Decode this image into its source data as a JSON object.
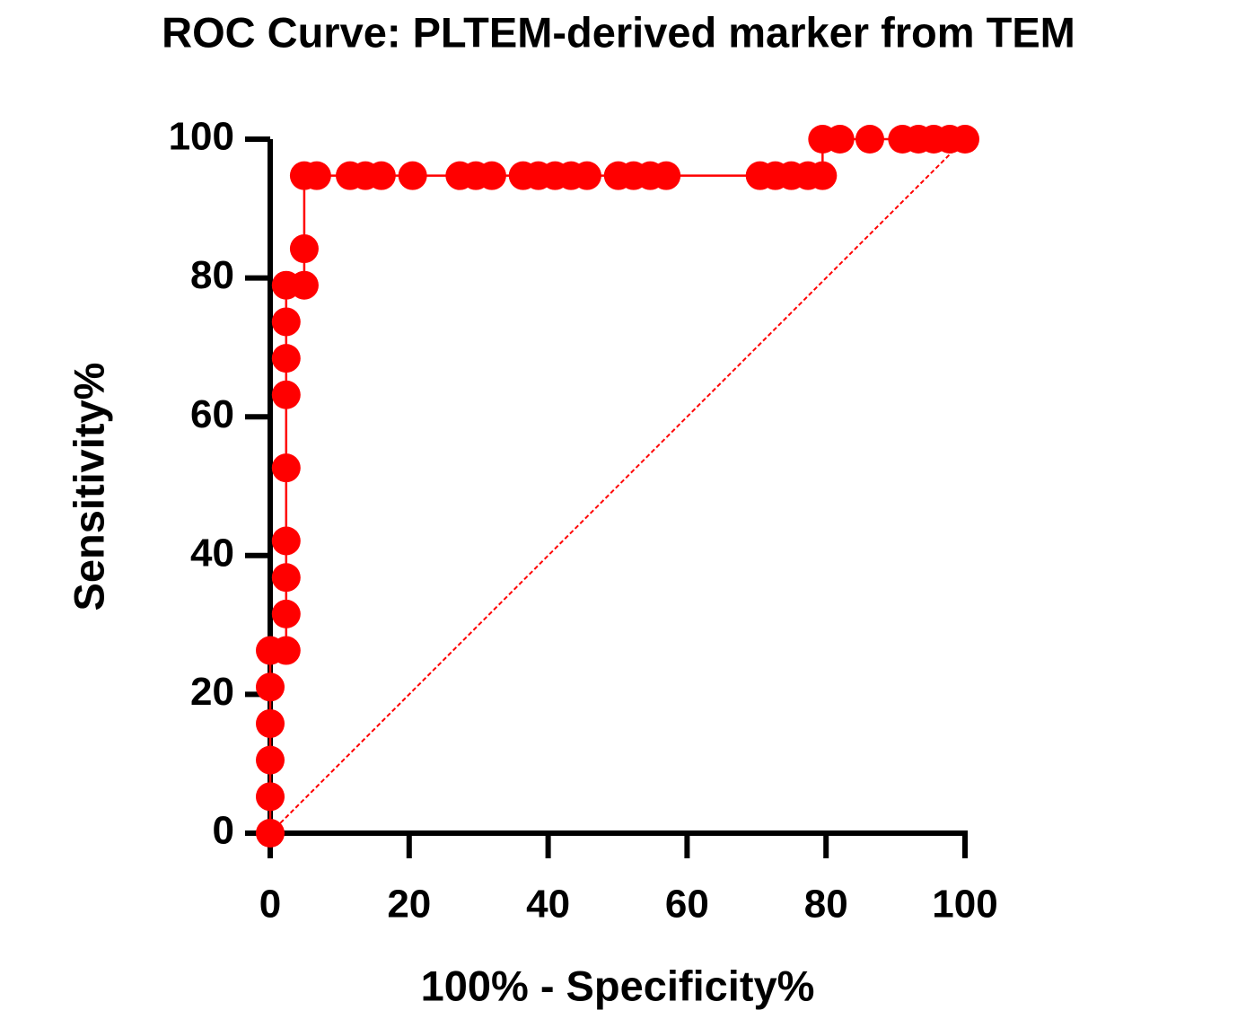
{
  "chart_data": {
    "type": "line",
    "title": "ROC Curve: PLTEM-derived marker  from TEM",
    "x_label": "100% - Specificity%",
    "y_label": "Sensitivity%",
    "x": [
      0,
      0,
      0,
      0,
      0,
      0,
      2.3,
      2.3,
      2.3,
      2.3,
      2.3,
      2.3,
      2.3,
      2.3,
      2.3,
      4.9,
      4.9,
      4.9,
      6.7,
      11.5,
      13.7,
      16,
      20.5,
      27.3,
      29.6,
      31.9,
      36.4,
      38.6,
      41,
      43.3,
      45.6,
      50.1,
      52.3,
      54.7,
      57,
      70.5,
      72.7,
      75,
      77.4,
      79.5,
      79.5,
      82,
      86.3,
      91,
      93.3,
      95.5,
      97.8,
      100
    ],
    "values": [
      0,
      5.26,
      10.53,
      15.79,
      21.05,
      26.32,
      26.32,
      31.58,
      36.84,
      42.11,
      52.63,
      63.16,
      68.42,
      73.68,
      78.95,
      78.95,
      84.21,
      94.74,
      94.74,
      94.74,
      94.74,
      94.74,
      94.74,
      94.74,
      94.74,
      94.74,
      94.74,
      94.74,
      94.74,
      94.74,
      94.74,
      94.74,
      94.74,
      94.74,
      94.74,
      94.74,
      94.74,
      94.74,
      94.74,
      94.74,
      100,
      100,
      100,
      100,
      100,
      100,
      100,
      100
    ],
    "color": "#ff0000",
    "diagonal": true,
    "xlim": [
      0,
      100
    ],
    "xticks": [
      0,
      20,
      40,
      60,
      80,
      100
    ],
    "ylim": [
      0,
      100
    ],
    "yticks": [
      0,
      20,
      40,
      60,
      80,
      100
    ]
  }
}
